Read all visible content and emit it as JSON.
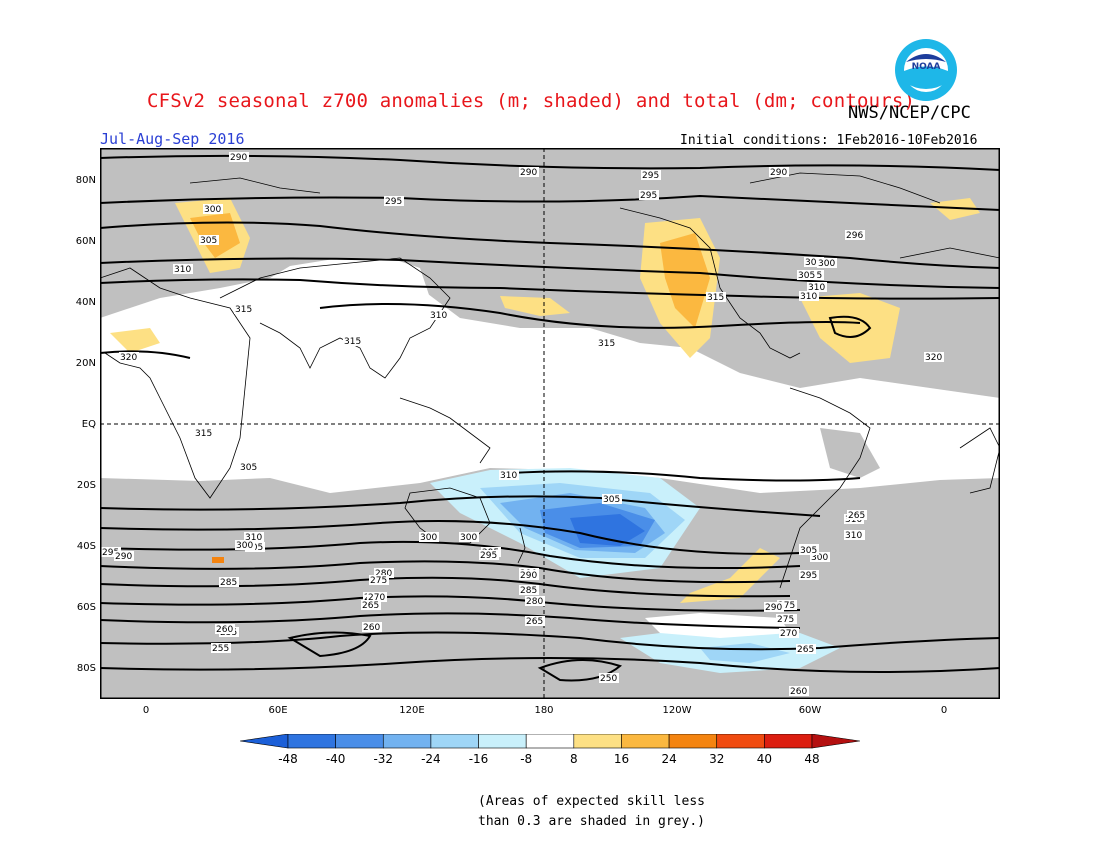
{
  "title": "CFSv2 seasonal z700 anomalies (m; shaded) and total (dm; contours)",
  "organization": "NWS/NCEP/CPC",
  "logo_text": "NOAA",
  "season": "Jul-Aug-Sep 2016",
  "initial_conditions": "Initial conditions: 1Feb2016-10Feb2016",
  "map": {
    "lat_labels": [
      "80N",
      "60N",
      "40N",
      "20N",
      "EQ",
      "20S",
      "40S",
      "60S",
      "80S"
    ],
    "lon_labels": [
      "0",
      "60E",
      "120E",
      "180",
      "120W",
      "60W",
      "0"
    ],
    "contour_labels": [
      "290",
      "290",
      "295",
      "300",
      "305",
      "310",
      "315",
      "320",
      "290",
      "295",
      "300",
      "305",
      "310",
      "315",
      "310",
      "315",
      "315",
      "305",
      "300",
      "295",
      "290",
      "310",
      "305",
      "300",
      "295",
      "290",
      "285",
      "280",
      "275",
      "270",
      "265",
      "260",
      "255",
      "250",
      "305",
      "310",
      "300",
      "295",
      "290",
      "285",
      "280",
      "275",
      "270",
      "265",
      "260",
      "255",
      "295",
      "296",
      "300",
      "305",
      "310",
      "315",
      "320",
      "310",
      "315",
      "305",
      "300",
      "295",
      "290",
      "275",
      "270",
      "265",
      "260",
      "255",
      "260",
      "265",
      "310",
      "305",
      "300"
    ],
    "colors": {
      "grey_mask": "#c0c0c0",
      "land_outline": "#000000",
      "contour": "#000000"
    }
  },
  "colorbar": {
    "labels": [
      "-48",
      "-40",
      "-32",
      "-24",
      "-16",
      "-8",
      "8",
      "16",
      "24",
      "32",
      "40",
      "48"
    ],
    "colors": [
      "#1b5fd8",
      "#2f74e0",
      "#4a8ee8",
      "#72b2f0",
      "#9fd6f7",
      "#c9f0fb",
      "#ffffff",
      "#fde084",
      "#fbb840",
      "#f48410",
      "#f04b10",
      "#dc1e10",
      "#b41010"
    ]
  },
  "note_lines": [
    "(Areas of expected skill less",
    "than 0.3 are shaded in grey.)"
  ]
}
